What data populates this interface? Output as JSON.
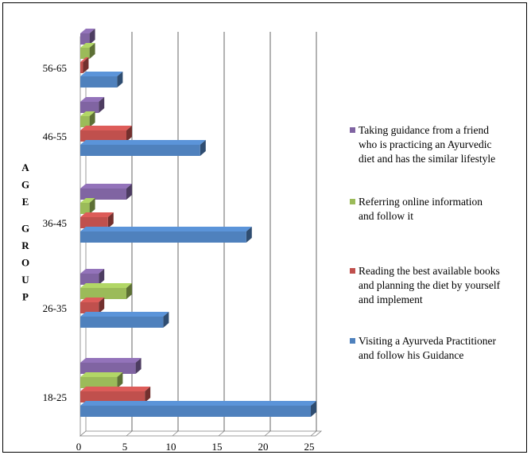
{
  "chart_data": {
    "type": "bar",
    "orientation": "horizontal",
    "three_d": true,
    "title": "",
    "xlabel": "",
    "ylabel": "AGE GROUP",
    "xlim": [
      0,
      25
    ],
    "x_ticks": [
      "0",
      "5",
      "10",
      "15",
      "20",
      "25"
    ],
    "categories": [
      "18-25",
      "26-35",
      "36-45",
      "46-55",
      "56-65"
    ],
    "grid": "vertical major gridlines",
    "legend_position": "right",
    "series": [
      {
        "name": "Visiting a Ayurveda Practitioner and follow his Guidance",
        "name_lines": [
          "Visiting a Ayurveda Practitioner",
          "and follow his Guidance"
        ],
        "color": "#4f81bd",
        "values": [
          25,
          9,
          18,
          13,
          4
        ]
      },
      {
        "name": "Reading the best available books and planning the diet by yourself and implement",
        "name_lines": [
          "Reading the best available books",
          "and planning the diet by yourself",
          "and implement"
        ],
        "color": "#c0504d",
        "values": [
          7,
          2,
          3,
          5,
          0.3
        ]
      },
      {
        "name": "Referring online information and follow it",
        "name_lines": [
          "Referring online information",
          "and follow it"
        ],
        "color": "#9bbb59",
        "values": [
          4,
          5,
          1,
          1,
          1
        ]
      },
      {
        "name": "Taking guidance from a friend who is practicing an Ayurvedic diet and has the similar lifestyle",
        "name_lines": [
          "Taking guidance from a friend",
          "who is practicing an Ayurvedic",
          "diet and has the similar lifestyle"
        ],
        "color": "#8064a2",
        "values": [
          6,
          2,
          5,
          2,
          1
        ]
      }
    ]
  }
}
